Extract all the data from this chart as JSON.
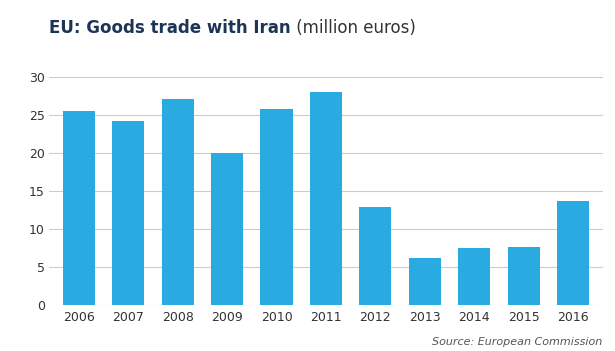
{
  "years": [
    "2006",
    "2007",
    "2008",
    "2009",
    "2010",
    "2011",
    "2012",
    "2013",
    "2014",
    "2015",
    "2016"
  ],
  "values": [
    25.5,
    24.2,
    27.2,
    20.0,
    25.8,
    28.0,
    13.0,
    6.2,
    7.5,
    7.7,
    13.7
  ],
  "bar_color": "#29ABE2",
  "title_bold": "EU: Goods trade with Iran",
  "title_normal": " (million euros)",
  "title_color_bold": "#1c3557",
  "title_color_normal": "#333333",
  "ylim": [
    0,
    30
  ],
  "yticks": [
    0,
    5,
    10,
    15,
    20,
    25,
    30
  ],
  "source_text": "Source: European Commission",
  "background_color": "#ffffff",
  "grid_color": "#cccccc",
  "top_bar_color": "#1c3557",
  "title_fontsize": 12,
  "axis_fontsize": 9,
  "source_fontsize": 8
}
